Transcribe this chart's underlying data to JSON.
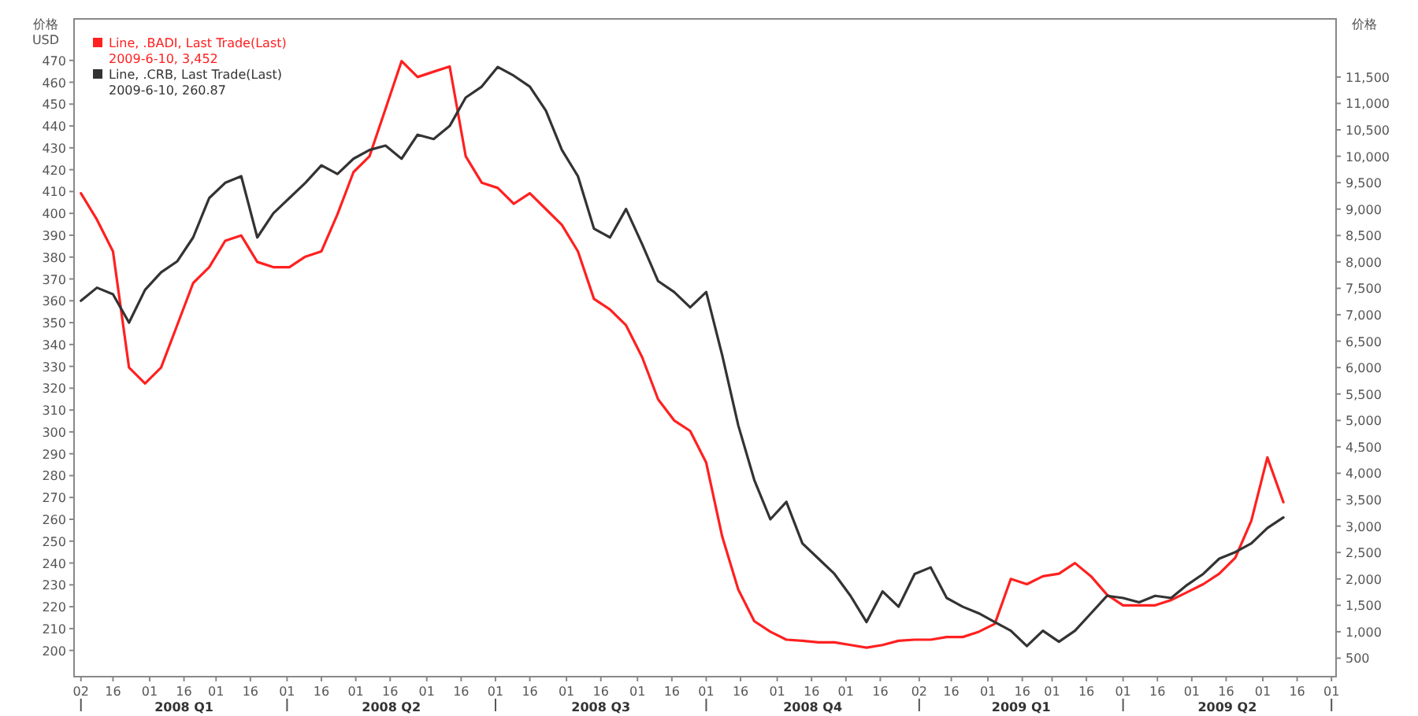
{
  "chart_data": {
    "type": "line",
    "ylabel": "价格\nUSD",
    "y2label": "价格",
    "legend": "top left",
    "xlim": [
      "2007-12-30",
      "2009-07-03"
    ],
    "xticks": [
      {
        "value": "2008-01-02",
        "label": "02"
      },
      {
        "value": "2008-01-16",
        "label": "16"
      },
      {
        "value": "2008-02-01",
        "label": "01"
      },
      {
        "value": "2008-02-16",
        "label": "16"
      },
      {
        "value": "2008-03-01",
        "label": "01"
      },
      {
        "value": "2008-03-16",
        "label": "16"
      },
      {
        "value": "2008-04-01",
        "label": "01"
      },
      {
        "value": "2008-04-16",
        "label": "16"
      },
      {
        "value": "2008-05-01",
        "label": "01"
      },
      {
        "value": "2008-05-16",
        "label": "16"
      },
      {
        "value": "2008-06-01",
        "label": "01"
      },
      {
        "value": "2008-06-16",
        "label": "16"
      },
      {
        "value": "2008-07-01",
        "label": "01"
      },
      {
        "value": "2008-07-16",
        "label": "16"
      },
      {
        "value": "2008-08-01",
        "label": "01"
      },
      {
        "value": "2008-08-16",
        "label": "16"
      },
      {
        "value": "2008-09-01",
        "label": "01"
      },
      {
        "value": "2008-09-16",
        "label": "16"
      },
      {
        "value": "2008-10-01",
        "label": "01"
      },
      {
        "value": "2008-10-16",
        "label": "16"
      },
      {
        "value": "2008-11-01",
        "label": "01"
      },
      {
        "value": "2008-11-16",
        "label": "16"
      },
      {
        "value": "2008-12-01",
        "label": "01"
      },
      {
        "value": "2008-12-16",
        "label": "16"
      },
      {
        "value": "2009-01-02",
        "label": "02"
      },
      {
        "value": "2009-01-16",
        "label": "16"
      },
      {
        "value": "2009-02-01",
        "label": "01"
      },
      {
        "value": "2009-02-16",
        "label": "16"
      },
      {
        "value": "2009-03-01",
        "label": "01"
      },
      {
        "value": "2009-03-16",
        "label": "16"
      },
      {
        "value": "2009-04-01",
        "label": "01"
      },
      {
        "value": "2009-04-16",
        "label": "16"
      },
      {
        "value": "2009-05-01",
        "label": "01"
      },
      {
        "value": "2009-05-16",
        "label": "16"
      },
      {
        "value": "2009-06-01",
        "label": "01"
      },
      {
        "value": "2009-06-16",
        "label": "16"
      },
      {
        "value": "2009-07-01",
        "label": "01"
      }
    ],
    "ylim": [
      188,
      489
    ],
    "yticks": [
      200,
      210,
      220,
      230,
      240,
      250,
      260,
      270,
      280,
      290,
      300,
      310,
      320,
      330,
      340,
      350,
      360,
      370,
      380,
      390,
      400,
      410,
      420,
      430,
      440,
      450,
      460,
      470
    ],
    "y2lim": [
      150,
      12600
    ],
    "y2ticks": [
      500,
      {
        "value": 1000,
        "label": "1,000"
      },
      {
        "value": 1500,
        "label": "1,500"
      },
      {
        "value": 2000,
        "label": "2,000"
      },
      {
        "value": 2500,
        "label": "2,500"
      },
      {
        "value": 3000,
        "label": "3,000"
      },
      {
        "value": 3500,
        "label": "3,500"
      },
      {
        "value": 4000,
        "label": "4,000"
      },
      {
        "value": 4500,
        "label": "4,500"
      },
      {
        "value": 5000,
        "label": "5,000"
      },
      {
        "value": 5500,
        "label": "5,500"
      },
      {
        "value": 6000,
        "label": "6,000"
      },
      {
        "value": 6500,
        "label": "6,500"
      },
      {
        "value": 7000,
        "label": "7,000"
      },
      {
        "value": 7500,
        "label": "7,500"
      },
      {
        "value": 8000,
        "label": "8,000"
      },
      {
        "value": 8500,
        "label": "8,500"
      },
      {
        "value": 9000,
        "label": "9,000"
      },
      {
        "value": 9500,
        "label": "9,500"
      },
      {
        "value": 10000,
        "label": "10,000"
      },
      {
        "value": 10500,
        "label": "10,500"
      },
      {
        "value": 11000,
        "label": "11,000"
      },
      {
        "value": 11500,
        "label": "11,500"
      }
    ],
    "annotations": [
      "2008 Q1",
      "2008 Q2",
      "2008 Q3",
      "2008 Q4",
      "2009 Q1",
      "2009 Q2"
    ],
    "x": [
      "2008-01-02",
      "2008-01-09",
      "2008-01-16",
      "2008-01-23",
      "2008-01-30",
      "2008-02-06",
      "2008-02-13",
      "2008-02-20",
      "2008-02-27",
      "2008-03-05",
      "2008-03-12",
      "2008-03-19",
      "2008-03-26",
      "2008-04-02",
      "2008-04-09",
      "2008-04-16",
      "2008-04-23",
      "2008-04-30",
      "2008-05-07",
      "2008-05-14",
      "2008-05-21",
      "2008-05-28",
      "2008-06-04",
      "2008-06-11",
      "2008-06-18",
      "2008-06-25",
      "2008-07-02",
      "2008-07-09",
      "2008-07-16",
      "2008-07-23",
      "2008-07-30",
      "2008-08-06",
      "2008-08-13",
      "2008-08-20",
      "2008-08-27",
      "2008-09-03",
      "2008-09-10",
      "2008-09-17",
      "2008-09-24",
      "2008-10-01",
      "2008-10-08",
      "2008-10-15",
      "2008-10-22",
      "2008-10-29",
      "2008-11-05",
      "2008-11-12",
      "2008-11-19",
      "2008-11-26",
      "2008-12-03",
      "2008-12-10",
      "2008-12-17",
      "2008-12-24",
      "2008-12-31",
      "2009-01-07",
      "2009-01-14",
      "2009-01-21",
      "2009-01-28",
      "2009-02-04",
      "2009-02-11",
      "2009-02-18",
      "2009-02-25",
      "2009-03-04",
      "2009-03-11",
      "2009-03-18",
      "2009-03-25",
      "2009-04-01",
      "2009-04-08",
      "2009-04-15",
      "2009-04-22",
      "2009-04-29",
      "2009-05-06",
      "2009-05-13",
      "2009-05-20",
      "2009-05-27",
      "2009-06-03",
      "2009-06-10"
    ],
    "series": [
      {
        "name": "Line, .BADI, Last Trade(Last)\n2009-6-10, 3,452",
        "color": "#ff2020",
        "axis": "y2",
        "values": [
          9300,
          8800,
          8200,
          6000,
          5700,
          6000,
          6800,
          7600,
          7900,
          8400,
          8500,
          8000,
          7900,
          7900,
          8100,
          8200,
          8900,
          9700,
          10000,
          10900,
          11800,
          11500,
          11600,
          11700,
          10000,
          9500,
          9400,
          9100,
          9300,
          9000,
          8700,
          8200,
          7300,
          7100,
          6800,
          6200,
          5400,
          5000,
          4800,
          4200,
          2800,
          1800,
          1200,
          1000,
          850,
          830,
          800,
          800,
          750,
          700,
          750,
          830,
          850,
          850,
          900,
          900,
          1000,
          1150,
          2000,
          1900,
          2050,
          2100,
          2300,
          2050,
          1700,
          1500,
          1500,
          1500,
          1600,
          1750,
          1900,
          2100,
          2400,
          3100,
          4300,
          3452
        ]
      },
      {
        "name": "Line, .CRB, Last Trade(Last)\n2009-6-10, 260.87",
        "color": "#333333",
        "axis": "y",
        "values": [
          360,
          366,
          363,
          350,
          365,
          373,
          378,
          389,
          407,
          414,
          417,
          389,
          400,
          407,
          414,
          422,
          418,
          425,
          429,
          431,
          425,
          436,
          434,
          440,
          453,
          458,
          467,
          463,
          458,
          447,
          429,
          417,
          393,
          389,
          402,
          386,
          369,
          364,
          357,
          364,
          335,
          303,
          278,
          260,
          268,
          249,
          242,
          235,
          225,
          213,
          227,
          220,
          235,
          238,
          224,
          220,
          217,
          213,
          209,
          202,
          209,
          204,
          209,
          217,
          225,
          224,
          222,
          225,
          224,
          230,
          235,
          242,
          245,
          249,
          256,
          260.87
        ]
      }
    ]
  }
}
